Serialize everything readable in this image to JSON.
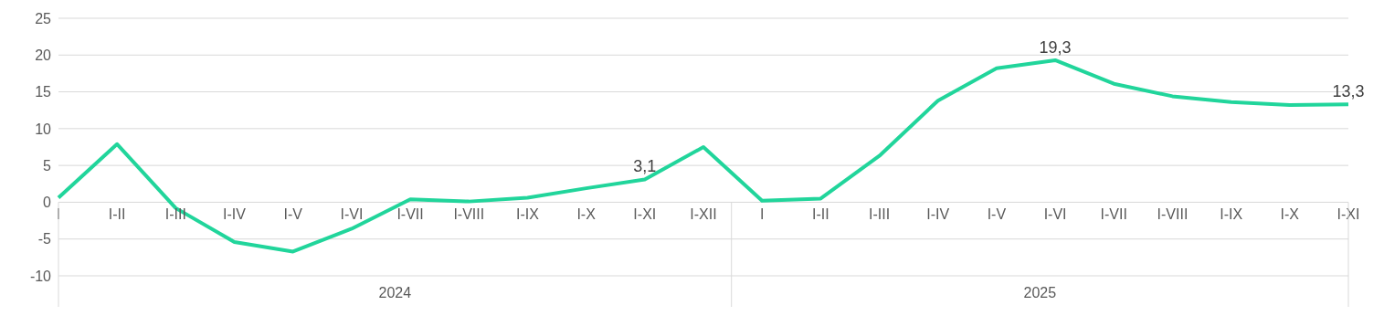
{
  "chart_data": {
    "type": "line",
    "categories": [
      "I",
      "I-II",
      "I-III",
      "I-IV",
      "I-V",
      "I-VI",
      "I-VII",
      "I-VIII",
      "I-IX",
      "I-X",
      "I-XI",
      "I-XII",
      "I",
      "I-II",
      "I-III",
      "I-IV",
      "I-V",
      "I-VI",
      "I-VII",
      "I-VIII",
      "I-IX",
      "I-X",
      "I-XI"
    ],
    "series": [
      {
        "color": "#21d59b",
        "values": [
          0.6,
          7.9,
          -0.8,
          -5.4,
          -6.7,
          -3.6,
          0.4,
          0.1,
          0.6,
          1.9,
          3.1,
          7.5,
          0.2,
          0.5,
          6.3,
          13.8,
          18.2,
          19.3,
          16.1,
          14.4,
          13.6,
          13.2,
          13.3
        ],
        "value_labels": [
          null,
          null,
          null,
          null,
          null,
          null,
          null,
          null,
          null,
          null,
          "3,1",
          null,
          null,
          null,
          null,
          null,
          null,
          "19,3",
          null,
          null,
          null,
          null,
          "13,3"
        ]
      }
    ],
    "annotations": [
      "2024",
      "2025"
    ],
    "ylim": [
      -10,
      25
    ],
    "yticks": [
      -10,
      -5,
      0,
      5,
      10,
      15,
      20,
      25
    ],
    "grid": "y",
    "marker": "none",
    "line_style": "solid"
  }
}
